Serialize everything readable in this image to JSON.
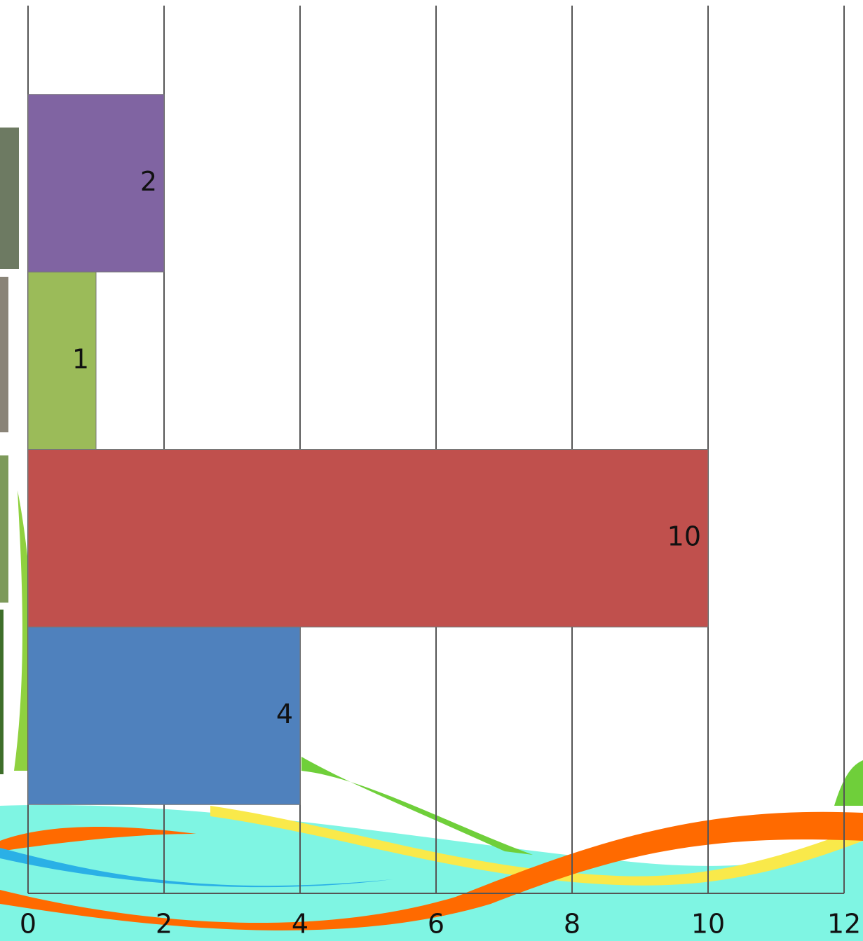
{
  "chart_data": {
    "type": "bar",
    "orientation": "horizontal",
    "categories": [
      null,
      null,
      null,
      null
    ],
    "values": [
      4,
      10,
      1,
      2
    ],
    "colors": [
      "#4f81bd",
      "#c0504d",
      "#9bbb59",
      "#8064a2"
    ],
    "xlim": [
      0,
      12
    ],
    "xticks": [
      0,
      2,
      4,
      6,
      8,
      10,
      12
    ],
    "grid": true
  }
}
